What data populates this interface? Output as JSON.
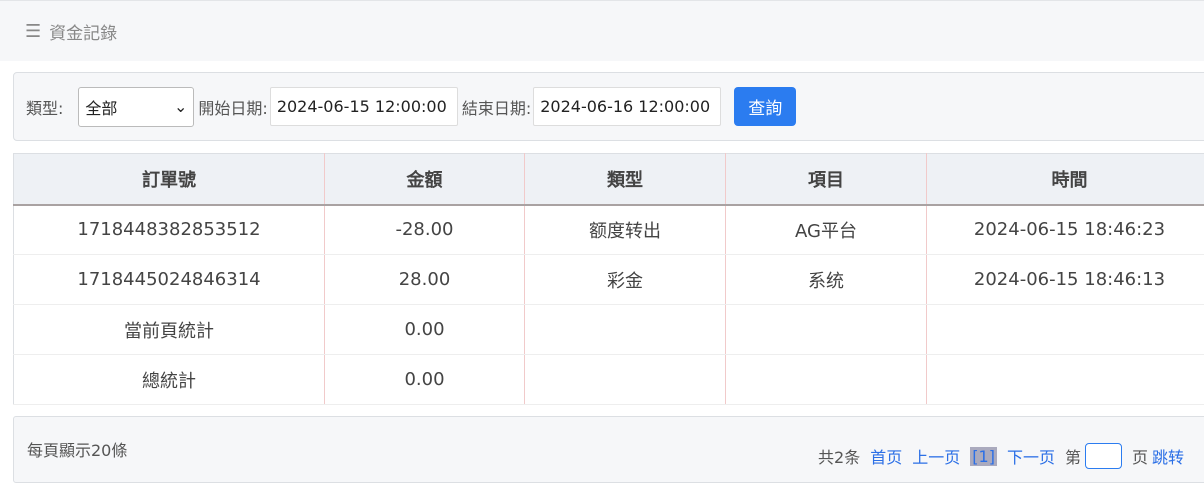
{
  "header": {
    "title": "資金記錄",
    "menu_icon": "hamburger-icon"
  },
  "filter": {
    "type_label": "類型:",
    "type_value": "全部",
    "start_label": "開始日期:",
    "start_value": "2024-06-15 12:00:00",
    "end_label": "結束日期:",
    "end_value": "2024-06-16 12:00:00",
    "query_label": "查詢"
  },
  "table": {
    "columns": [
      "訂單號",
      "金額",
      "類型",
      "項目",
      "時間"
    ],
    "rows": [
      [
        "1718448382853512",
        "-28.00",
        "额度转出",
        "AG平台",
        "2024-06-15 18:46:23"
      ],
      [
        "1718445024846314",
        "28.00",
        "彩金",
        "系统",
        "2024-06-15 18:46:13"
      ]
    ],
    "page_total_label": "當前頁統計",
    "page_total": "0.00",
    "grand_total_label": "總統計",
    "grand_total": "0.00"
  },
  "pager": {
    "per_page": "每頁顯示20條",
    "total": "共2条",
    "first": "首页",
    "prev": "上一页",
    "current": "[1]",
    "next": "下一页",
    "page_prefix": "第",
    "page_suffix": "页",
    "go": "跳转"
  },
  "colors": {
    "accent": "#2b7cf0"
  }
}
